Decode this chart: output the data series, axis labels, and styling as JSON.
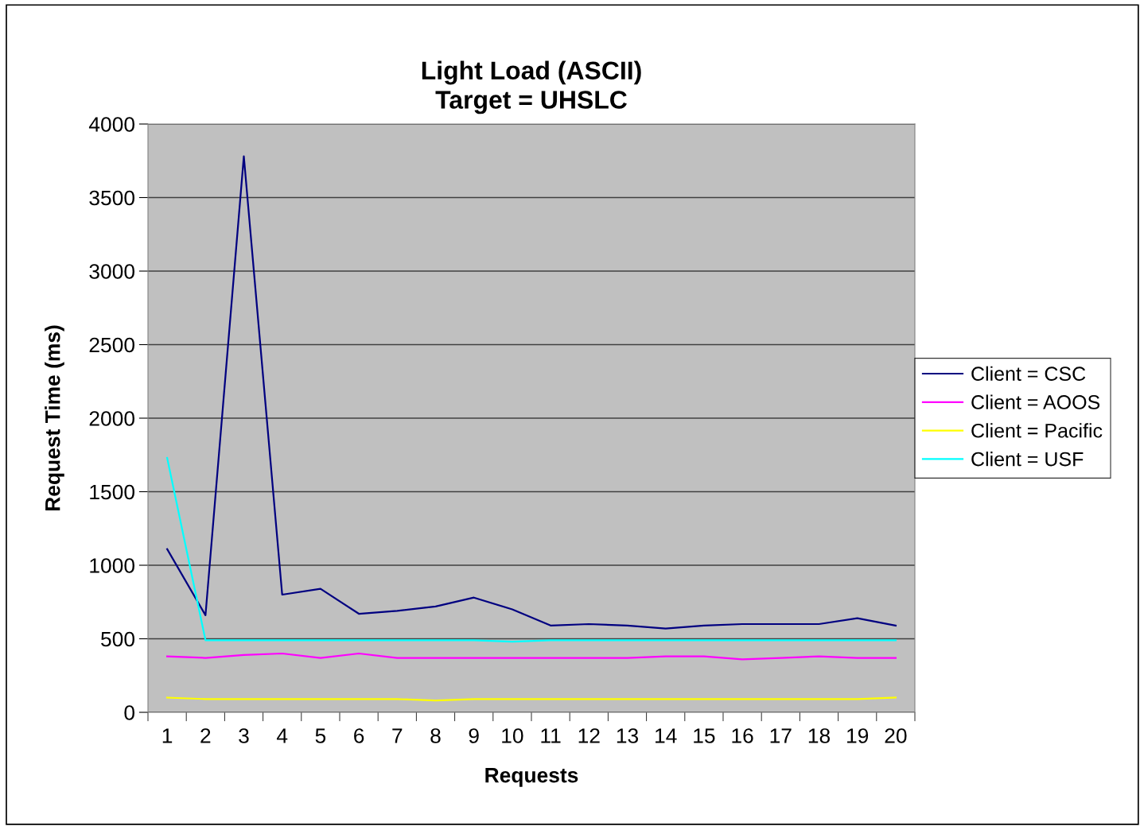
{
  "chart_data": {
    "type": "line",
    "title": "Light Load (ASCII)\nTarget = UHSLC",
    "xlabel": "Requests",
    "ylabel": "Request Time (ms)",
    "categories": [
      "1",
      "2",
      "3",
      "4",
      "5",
      "6",
      "7",
      "8",
      "9",
      "10",
      "11",
      "12",
      "13",
      "14",
      "15",
      "16",
      "17",
      "18",
      "19",
      "20"
    ],
    "series": [
      {
        "name": "Client = CSC",
        "color": "#000080",
        "values": [
          1110,
          660,
          3780,
          800,
          840,
          670,
          690,
          720,
          780,
          700,
          590,
          600,
          590,
          570,
          590,
          600,
          600,
          600,
          640,
          590
        ]
      },
      {
        "name": "Client = AOOS",
        "color": "#ff00ff",
        "values": [
          380,
          370,
          390,
          400,
          370,
          400,
          370,
          370,
          370,
          370,
          370,
          370,
          370,
          380,
          380,
          360,
          370,
          380,
          370,
          370
        ]
      },
      {
        "name": "Client = Pacific",
        "color": "#ffff00",
        "values": [
          100,
          90,
          90,
          90,
          90,
          90,
          90,
          80,
          90,
          90,
          90,
          90,
          90,
          90,
          90,
          90,
          90,
          90,
          90,
          100
        ]
      },
      {
        "name": "Client = USF",
        "color": "#00ffff",
        "values": [
          1730,
          490,
          490,
          490,
          490,
          490,
          490,
          490,
          490,
          480,
          490,
          490,
          490,
          490,
          490,
          490,
          490,
          490,
          490,
          490
        ]
      }
    ],
    "ylim": [
      0,
      4000
    ],
    "yticks": [
      0,
      500,
      1000,
      1500,
      2000,
      2500,
      3000,
      3500,
      4000
    ],
    "grid": "y",
    "legend": "right",
    "marker": "none",
    "line_style": "solid"
  }
}
